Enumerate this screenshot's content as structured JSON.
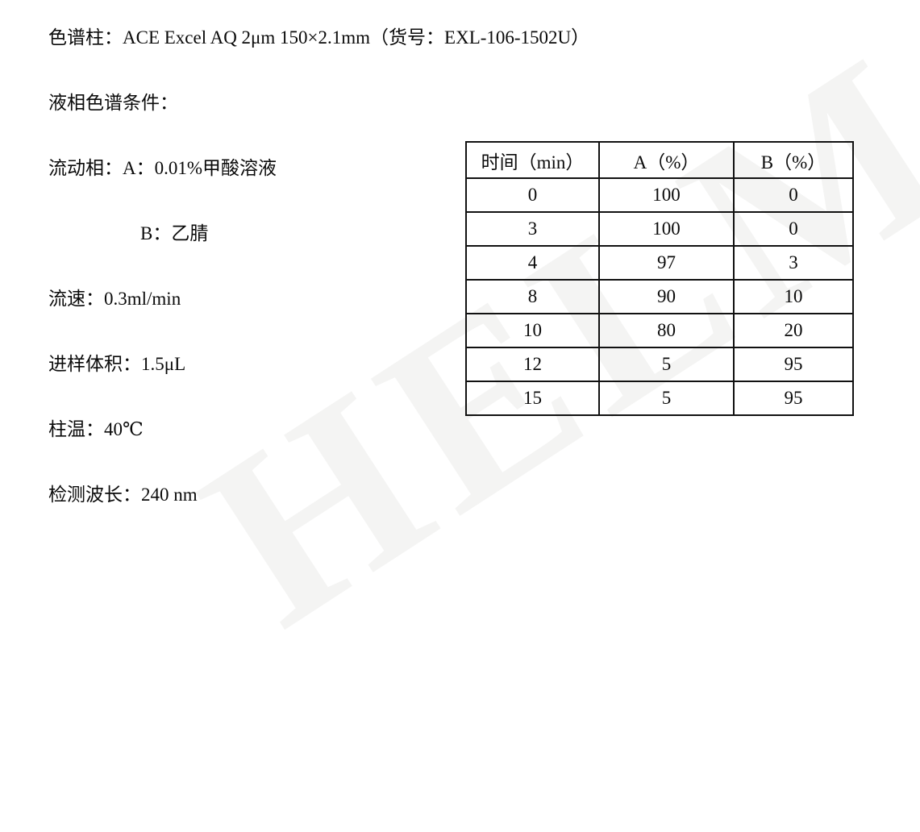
{
  "conditions": {
    "column_spec": "色谱柱：ACE Excel AQ 2μm 150×2.1mm（货号：EXL-106-1502U）",
    "section_title": "液相色谱条件：",
    "mobile_phase_a": "流动相：A：0.01%甲酸溶液",
    "mobile_phase_b": "B：乙腈",
    "flow_rate": "流速：0.3ml/min",
    "injection_volume": "进样体积：1.5μL",
    "column_temperature": "柱温：40℃",
    "detection_wavelength": "检测波长：240 nm"
  },
  "gradient_table": {
    "headers": [
      "时间（min）",
      "A（%）",
      "B（%）"
    ],
    "rows": [
      [
        "0",
        "100",
        "0"
      ],
      [
        "3",
        "100",
        "0"
      ],
      [
        "4",
        "97",
        "3"
      ],
      [
        "8",
        "90",
        "10"
      ],
      [
        "10",
        "80",
        "20"
      ],
      [
        "12",
        "5",
        "95"
      ],
      [
        "15",
        "5",
        "95"
      ]
    ]
  },
  "watermark": {
    "text": "HELM",
    "color": "rgba(60,55,45,0.055)"
  }
}
